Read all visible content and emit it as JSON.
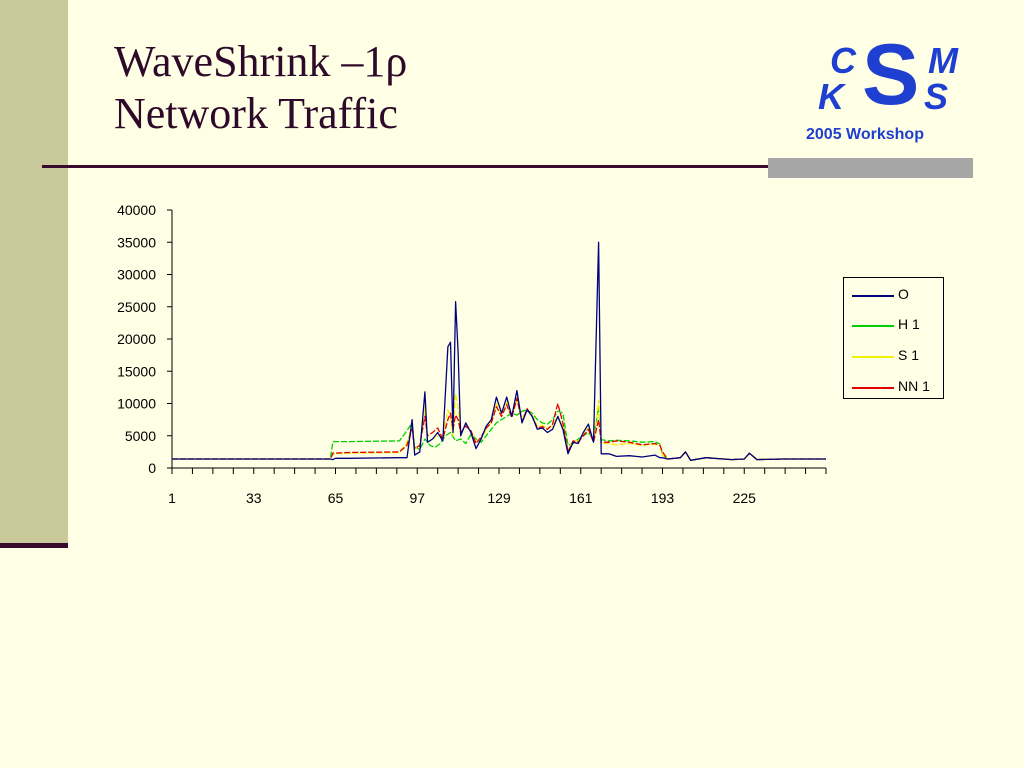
{
  "slide": {
    "title_line1": "WaveShrink –1ρ",
    "title_line2": "Network Traffic"
  },
  "logo": {
    "c": "C",
    "k": "K",
    "s_big": "S",
    "m": "M",
    "s_small": "S",
    "workshop": "2005 Workshop",
    "color": "#1F3FD0"
  },
  "chart_data": {
    "type": "line",
    "title": "",
    "xlabel": "",
    "ylabel": "",
    "x_ticks": [
      "1",
      "33",
      "65",
      "97",
      "129",
      "161",
      "193",
      "225"
    ],
    "x_range": [
      1,
      257
    ],
    "ylim": [
      0,
      40000
    ],
    "y_ticks": [
      "0",
      "5000",
      "10000",
      "15000",
      "20000",
      "25000",
      "30000",
      "35000",
      "40000"
    ],
    "legend_position": "right",
    "series": [
      {
        "name": "O",
        "color": "#000080",
        "points": [
          [
            1,
            1400
          ],
          [
            63,
            1400
          ],
          [
            64,
            1300
          ],
          [
            65,
            1500
          ],
          [
            70,
            1500
          ],
          [
            90,
            1600
          ],
          [
            93,
            1600
          ],
          [
            95,
            7500
          ],
          [
            96,
            2000
          ],
          [
            98,
            2500
          ],
          [
            100,
            11800
          ],
          [
            101,
            4000
          ],
          [
            103,
            4500
          ],
          [
            105,
            5500
          ],
          [
            107,
            4200
          ],
          [
            109,
            18800
          ],
          [
            110,
            19500
          ],
          [
            111,
            5500
          ],
          [
            112,
            25800
          ],
          [
            113,
            18000
          ],
          [
            114,
            5000
          ],
          [
            116,
            7000
          ],
          [
            118,
            5500
          ],
          [
            120,
            3000
          ],
          [
            122,
            4500
          ],
          [
            124,
            6500
          ],
          [
            126,
            7500
          ],
          [
            128,
            11000
          ],
          [
            130,
            8500
          ],
          [
            132,
            11000
          ],
          [
            134,
            8000
          ],
          [
            136,
            12000
          ],
          [
            138,
            7000
          ],
          [
            140,
            9000
          ],
          [
            142,
            8000
          ],
          [
            144,
            6000
          ],
          [
            146,
            6200
          ],
          [
            148,
            5500
          ],
          [
            150,
            6000
          ],
          [
            152,
            8000
          ],
          [
            154,
            6000
          ],
          [
            156,
            2200
          ],
          [
            158,
            4000
          ],
          [
            160,
            3800
          ],
          [
            162,
            5500
          ],
          [
            164,
            6800
          ],
          [
            166,
            4000
          ],
          [
            168,
            35000
          ],
          [
            169,
            2200
          ],
          [
            172,
            2200
          ],
          [
            175,
            1800
          ],
          [
            180,
            1900
          ],
          [
            185,
            1700
          ],
          [
            190,
            2000
          ],
          [
            192,
            1600
          ],
          [
            193,
            1600
          ],
          [
            195,
            1400
          ],
          [
            200,
            1600
          ],
          [
            202,
            2500
          ],
          [
            204,
            1200
          ],
          [
            210,
            1600
          ],
          [
            220,
            1300
          ],
          [
            225,
            1400
          ],
          [
            227,
            2300
          ],
          [
            230,
            1300
          ],
          [
            240,
            1400
          ],
          [
            257,
            1400
          ]
        ]
      },
      {
        "name": "H 1",
        "color": "#00D000",
        "points": [
          [
            1,
            1400
          ],
          [
            63,
            1400
          ],
          [
            64,
            4100
          ],
          [
            70,
            4100
          ],
          [
            90,
            4200
          ],
          [
            93,
            5800
          ],
          [
            95,
            7000
          ],
          [
            96,
            3200
          ],
          [
            98,
            2900
          ],
          [
            100,
            4500
          ],
          [
            102,
            3500
          ],
          [
            104,
            3200
          ],
          [
            106,
            3800
          ],
          [
            108,
            5000
          ],
          [
            110,
            5500
          ],
          [
            112,
            4200
          ],
          [
            114,
            4500
          ],
          [
            116,
            3800
          ],
          [
            118,
            5200
          ],
          [
            120,
            4500
          ],
          [
            122,
            4000
          ],
          [
            124,
            5000
          ],
          [
            126,
            6000
          ],
          [
            128,
            7000
          ],
          [
            130,
            7500
          ],
          [
            132,
            8000
          ],
          [
            134,
            8500
          ],
          [
            136,
            8200
          ],
          [
            138,
            8800
          ],
          [
            140,
            9000
          ],
          [
            142,
            8500
          ],
          [
            144,
            7500
          ],
          [
            146,
            7000
          ],
          [
            148,
            6800
          ],
          [
            150,
            7500
          ],
          [
            152,
            8800
          ],
          [
            154,
            8500
          ],
          [
            156,
            3500
          ],
          [
            158,
            3800
          ],
          [
            160,
            4500
          ],
          [
            162,
            5000
          ],
          [
            164,
            5500
          ],
          [
            166,
            4500
          ],
          [
            168,
            9500
          ],
          [
            169,
            4400
          ],
          [
            172,
            4200
          ],
          [
            175,
            4300
          ],
          [
            180,
            4200
          ],
          [
            185,
            4000
          ],
          [
            190,
            4100
          ],
          [
            192,
            3700
          ],
          [
            193,
            2000
          ],
          [
            195,
            1400
          ],
          [
            200,
            1600
          ],
          [
            202,
            2500
          ],
          [
            204,
            1200
          ],
          [
            210,
            1600
          ],
          [
            220,
            1300
          ],
          [
            225,
            1400
          ],
          [
            227,
            2300
          ],
          [
            230,
            1300
          ],
          [
            240,
            1400
          ],
          [
            257,
            1400
          ]
        ]
      },
      {
        "name": "S 1",
        "color": "#F0F000",
        "points": [
          [
            1,
            1400
          ],
          [
            63,
            1400
          ],
          [
            64,
            2200
          ],
          [
            70,
            2300
          ],
          [
            90,
            2400
          ],
          [
            93,
            4000
          ],
          [
            95,
            6500
          ],
          [
            96,
            3000
          ],
          [
            98,
            3200
          ],
          [
            100,
            9500
          ],
          [
            101,
            4000
          ],
          [
            103,
            4500
          ],
          [
            105,
            5000
          ],
          [
            107,
            4800
          ],
          [
            109,
            9000
          ],
          [
            110,
            8000
          ],
          [
            111,
            5000
          ],
          [
            112,
            11500
          ],
          [
            113,
            9500
          ],
          [
            114,
            5000
          ],
          [
            116,
            7000
          ],
          [
            118,
            5500
          ],
          [
            120,
            4000
          ],
          [
            122,
            4500
          ],
          [
            124,
            6000
          ],
          [
            126,
            7200
          ],
          [
            128,
            10000
          ],
          [
            130,
            8300
          ],
          [
            132,
            10200
          ],
          [
            134,
            8000
          ],
          [
            136,
            10500
          ],
          [
            138,
            7500
          ],
          [
            140,
            9000
          ],
          [
            142,
            8200
          ],
          [
            144,
            6500
          ],
          [
            146,
            6600
          ],
          [
            148,
            6200
          ],
          [
            150,
            6500
          ],
          [
            152,
            8000
          ],
          [
            154,
            6500
          ],
          [
            156,
            2800
          ],
          [
            158,
            4200
          ],
          [
            160,
            4200
          ],
          [
            162,
            5300
          ],
          [
            164,
            6200
          ],
          [
            166,
            4200
          ],
          [
            168,
            10500
          ],
          [
            169,
            3800
          ],
          [
            172,
            3800
          ],
          [
            175,
            3600
          ],
          [
            180,
            3800
          ],
          [
            185,
            3500
          ],
          [
            190,
            3700
          ],
          [
            192,
            3600
          ],
          [
            193,
            2000
          ],
          [
            195,
            1400
          ],
          [
            200,
            1600
          ],
          [
            202,
            2500
          ],
          [
            204,
            1200
          ],
          [
            210,
            1600
          ],
          [
            220,
            1300
          ],
          [
            225,
            1400
          ],
          [
            227,
            2300
          ],
          [
            230,
            1300
          ],
          [
            240,
            1400
          ],
          [
            257,
            1400
          ]
        ]
      },
      {
        "name": "NN 1",
        "color": "#E00000",
        "points": [
          [
            1,
            1400
          ],
          [
            63,
            1400
          ],
          [
            64,
            2300
          ],
          [
            70,
            2400
          ],
          [
            90,
            2500
          ],
          [
            93,
            3500
          ],
          [
            95,
            6000
          ],
          [
            96,
            3000
          ],
          [
            98,
            3500
          ],
          [
            100,
            8000
          ],
          [
            101,
            5000
          ],
          [
            103,
            5500
          ],
          [
            105,
            6200
          ],
          [
            107,
            4500
          ],
          [
            109,
            7500
          ],
          [
            110,
            8500
          ],
          [
            111,
            6000
          ],
          [
            112,
            8200
          ],
          [
            113,
            7500
          ],
          [
            114,
            5500
          ],
          [
            116,
            6500
          ],
          [
            118,
            5800
          ],
          [
            120,
            3800
          ],
          [
            122,
            4800
          ],
          [
            124,
            6200
          ],
          [
            126,
            7000
          ],
          [
            128,
            9500
          ],
          [
            130,
            8000
          ],
          [
            132,
            9800
          ],
          [
            134,
            7800
          ],
          [
            136,
            10800
          ],
          [
            138,
            7200
          ],
          [
            140,
            9200
          ],
          [
            142,
            8000
          ],
          [
            144,
            6200
          ],
          [
            146,
            6400
          ],
          [
            148,
            6000
          ],
          [
            150,
            6800
          ],
          [
            152,
            10000
          ],
          [
            154,
            7000
          ],
          [
            156,
            2500
          ],
          [
            158,
            4200
          ],
          [
            160,
            4000
          ],
          [
            162,
            5000
          ],
          [
            164,
            6000
          ],
          [
            166,
            4000
          ],
          [
            168,
            7500
          ],
          [
            169,
            4000
          ],
          [
            172,
            4000
          ],
          [
            175,
            4200
          ],
          [
            180,
            4000
          ],
          [
            185,
            3600
          ],
          [
            190,
            3800
          ],
          [
            192,
            3500
          ],
          [
            193,
            2500
          ],
          [
            195,
            1400
          ],
          [
            200,
            1600
          ],
          [
            202,
            2500
          ],
          [
            204,
            1200
          ],
          [
            210,
            1600
          ],
          [
            220,
            1300
          ],
          [
            225,
            1400
          ],
          [
            227,
            2300
          ],
          [
            230,
            1300
          ],
          [
            240,
            1400
          ],
          [
            257,
            1400
          ]
        ]
      }
    ]
  }
}
